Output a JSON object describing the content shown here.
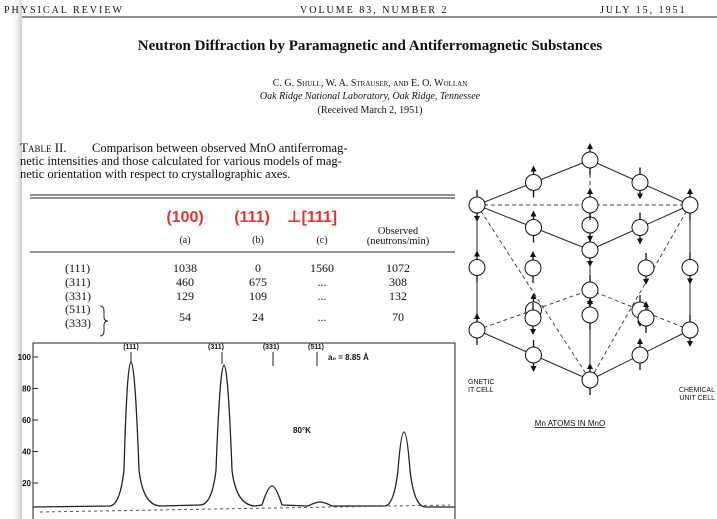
{
  "header": {
    "journal": "PHYSICAL REVIEW",
    "volume": "VOLUME 83, NUMBER 2",
    "date": "JULY 15, 1951"
  },
  "article": {
    "title": "Neutron Diffraction by Paramagnetic and Antiferromagnetic Substances",
    "authors": "C. G. Shull, W. A. Strauser, and E. O. Wollan",
    "affiliation": "Oak Ridge National Laboratory, Oak Ridge, Tennessee",
    "received": "(Received March 2, 1951)"
  },
  "table": {
    "caption_label": "Table II.",
    "caption_lines": [
      "Comparison between observed MnO antiferromag-",
      "netic intensities and those calculated for various models of mag-",
      "netic orientation with respect to crystallographic axes."
    ],
    "model_headers": [
      "(100)",
      "(111)",
      "⊥[111]"
    ],
    "columns": [
      "(a)",
      "(b)",
      "(c)"
    ],
    "observed_header": [
      "Observed",
      "(neutrons/min)"
    ],
    "rows": [
      {
        "labels": [
          "(111)"
        ],
        "values": [
          1038,
          0,
          1560,
          1072
        ]
      },
      {
        "labels": [
          "(311)"
        ],
        "values": [
          460,
          675,
          "...",
          308
        ]
      },
      {
        "labels": [
          "(331)"
        ],
        "values": [
          129,
          109,
          "...",
          132
        ]
      },
      {
        "labels": [
          "(511)",
          "(333)"
        ],
        "values": [
          54,
          24,
          "...",
          70
        ]
      }
    ]
  },
  "plot": {
    "yticks": [
      100,
      80,
      60,
      40,
      20
    ],
    "peak_labels": [
      "(111)",
      "(311)",
      "(331)",
      "(511)"
    ],
    "lattice_label": "a₀ = 8.85 Å",
    "temperature": "80°K"
  },
  "diagram": {
    "left_label": [
      "GNETIC",
      "IT CELL"
    ],
    "right_label": [
      "CHEMICAL",
      "UNIT CELL"
    ],
    "caption": "Mn ATOMS IN MnO"
  }
}
